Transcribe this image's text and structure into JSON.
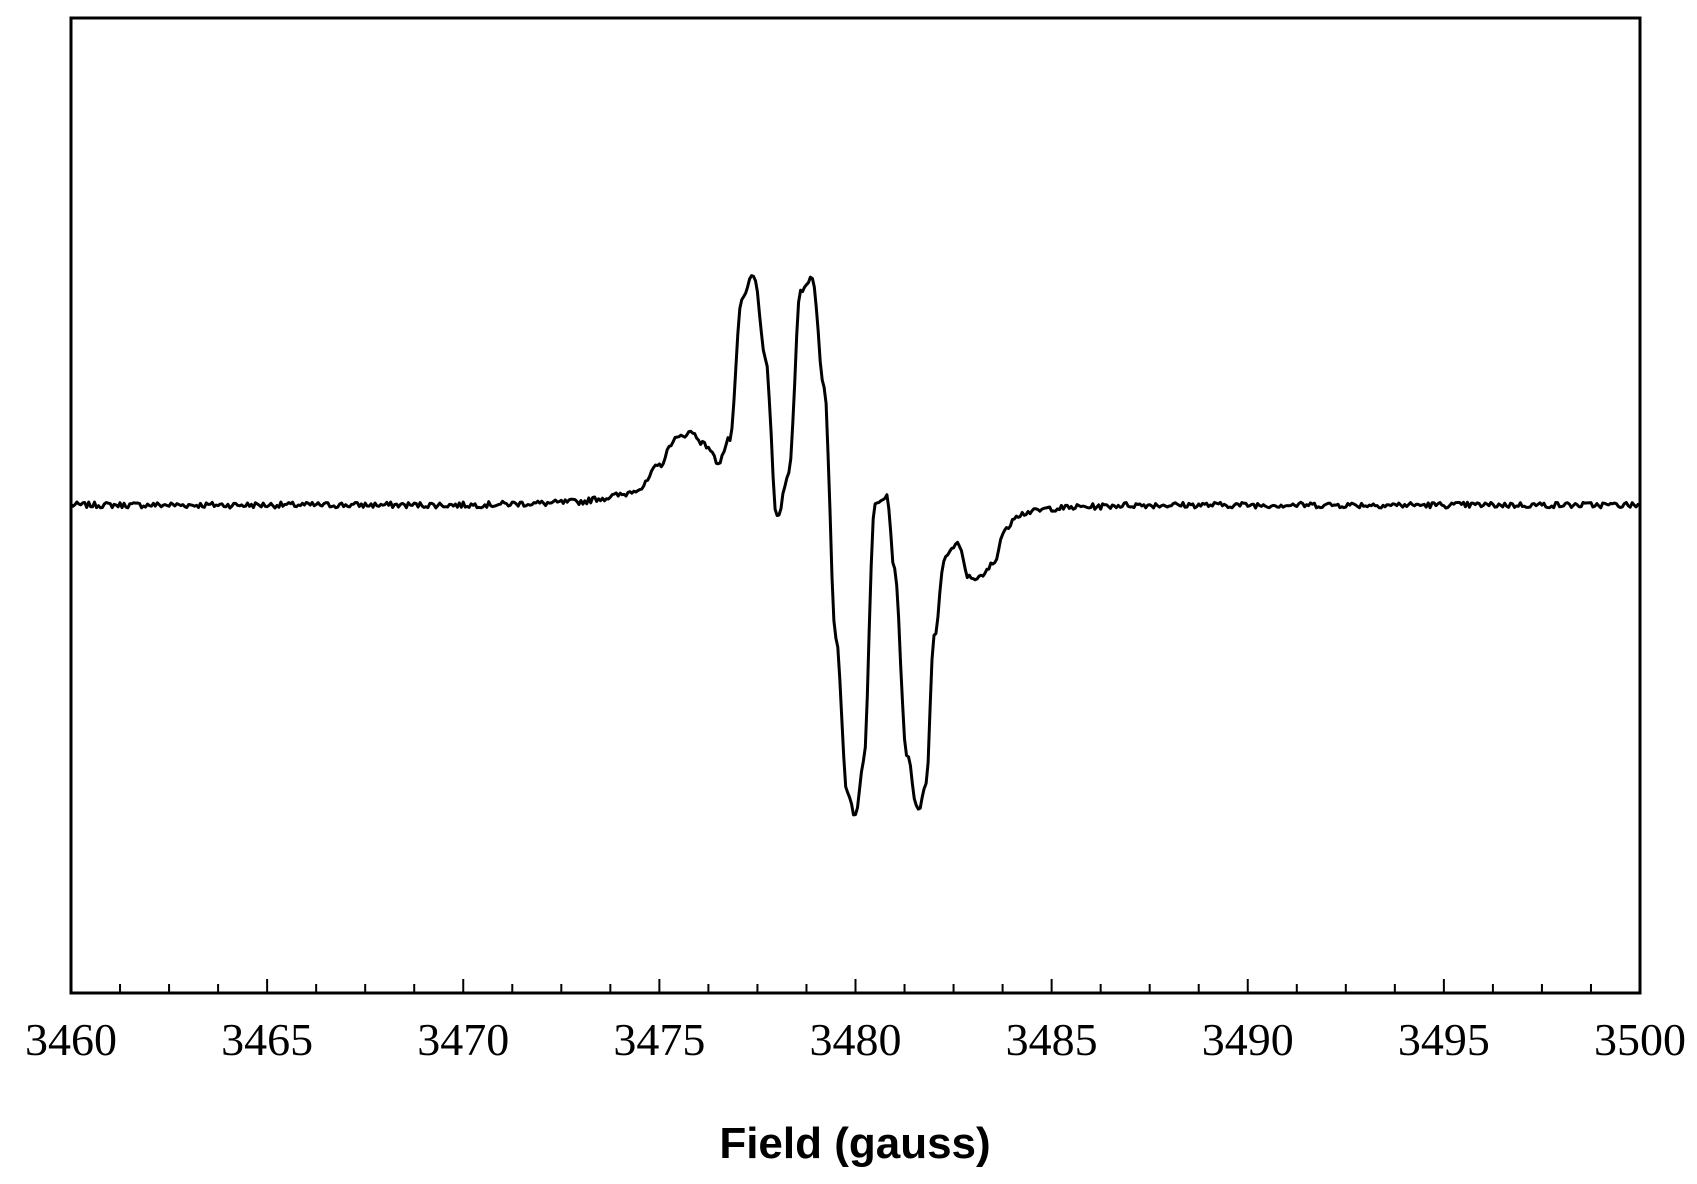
{
  "chart_data": {
    "type": "line",
    "title": "",
    "xlabel": "Field (gauss)",
    "ylabel": "",
    "xlim": [
      3460,
      3500
    ],
    "ylim": [
      -1.0,
      1.0
    ],
    "x_ticks": [
      3460,
      3465,
      3470,
      3475,
      3480,
      3485,
      3490,
      3495,
      3500
    ],
    "x_tick_labels": [
      "3460",
      "3465",
      "3470",
      "3475",
      "3480",
      "3485",
      "3490",
      "3495",
      "3500"
    ],
    "x_minor_step": 1.25,
    "y_ticks_shown": false,
    "grid": false,
    "legend": "none",
    "line_color": "#000000",
    "series": [
      {
        "x": [
          3460,
          3462,
          3464,
          3466,
          3468,
          3470,
          3472,
          3473,
          3473.5,
          3474,
          3474.5,
          3475,
          3475.4,
          3475.8,
          3476.2,
          3476.5,
          3476.8,
          3477.1,
          3477.4,
          3477.7,
          3478.0,
          3478.3,
          3478.6,
          3478.9,
          3479.2,
          3479.5,
          3479.8,
          3480.0,
          3480.2,
          3480.5,
          3480.8,
          3481.0,
          3481.3,
          3481.6,
          3481.8,
          3482.0,
          3482.3,
          3482.6,
          3482.9,
          3483.2,
          3483.5,
          3483.8,
          3484.1,
          3484.5,
          3485,
          3486,
          3487,
          3488,
          3490,
          3492,
          3494,
          3496,
          3498,
          3500
        ],
        "y": [
          0.0,
          0.0,
          0.0,
          0.0,
          0.0,
          0.0,
          0.005,
          0.01,
          0.02,
          0.03,
          0.05,
          0.12,
          0.2,
          0.22,
          0.18,
          0.13,
          0.2,
          0.62,
          0.7,
          0.45,
          -0.04,
          0.1,
          0.65,
          0.69,
          0.35,
          -0.4,
          -0.88,
          -0.94,
          -0.78,
          0.01,
          0.03,
          -0.2,
          -0.75,
          -0.93,
          -0.85,
          -0.4,
          -0.15,
          -0.12,
          -0.22,
          -0.22,
          -0.18,
          -0.08,
          -0.03,
          -0.02,
          -0.01,
          -0.005,
          0.0,
          0.0,
          0.0,
          0.0,
          0.0,
          0.0,
          0.0,
          0.0
        ]
      }
    ]
  }
}
